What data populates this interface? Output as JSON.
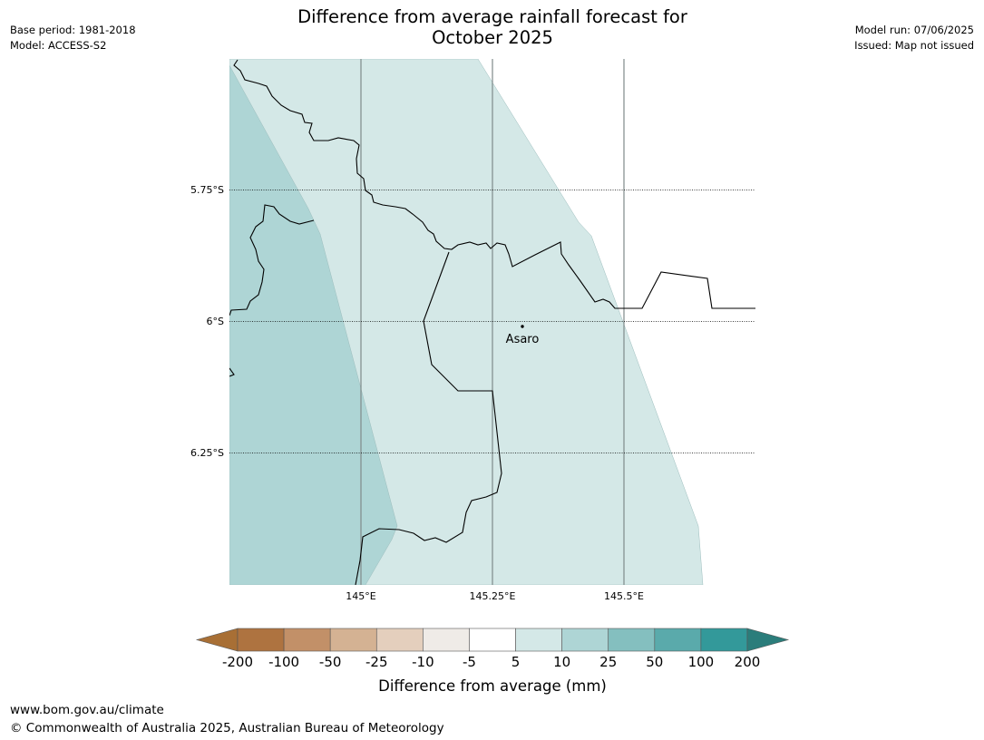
{
  "header": {
    "title_line1": "Difference from average rainfall forecast for",
    "title_line2": "October 2025",
    "base_period": "Base period: 1981-2018",
    "model": "Model: ACCESS-S2",
    "model_run": "Model run: 07/06/2025",
    "issued": "Issued: Map not issued"
  },
  "map": {
    "lat_labels": [
      "5.75°S",
      "6°S",
      "6.25°S"
    ],
    "lon_labels": [
      "145°E",
      "145.25°E",
      "145.5°E"
    ],
    "place": "Asaro",
    "colors": {
      "band_5_10": "#d4e8e7",
      "band_10_25": "#aed5d5",
      "land_outline": "#000000",
      "meridian": "#7f8a8a"
    }
  },
  "legend": {
    "title": "Difference from average (mm)",
    "ticks": [
      "-200",
      "-100",
      "-50",
      "-25",
      "-10",
      "-5",
      "5",
      "10",
      "25",
      "50",
      "100",
      "200"
    ],
    "colors": [
      "#a86f35",
      "#ae7340",
      "#c29068",
      "#d4b293",
      "#e4cfbd",
      "#efebe7",
      "#ffffff",
      "#d4e8e7",
      "#aed5d5",
      "#84bfbf",
      "#5aaaab",
      "#33999a",
      "#2b7d7b"
    ]
  },
  "footer": {
    "url": "www.bom.gov.au/climate",
    "copyright": "© Commonwealth of Australia 2025, Australian Bureau of Meteorology"
  }
}
